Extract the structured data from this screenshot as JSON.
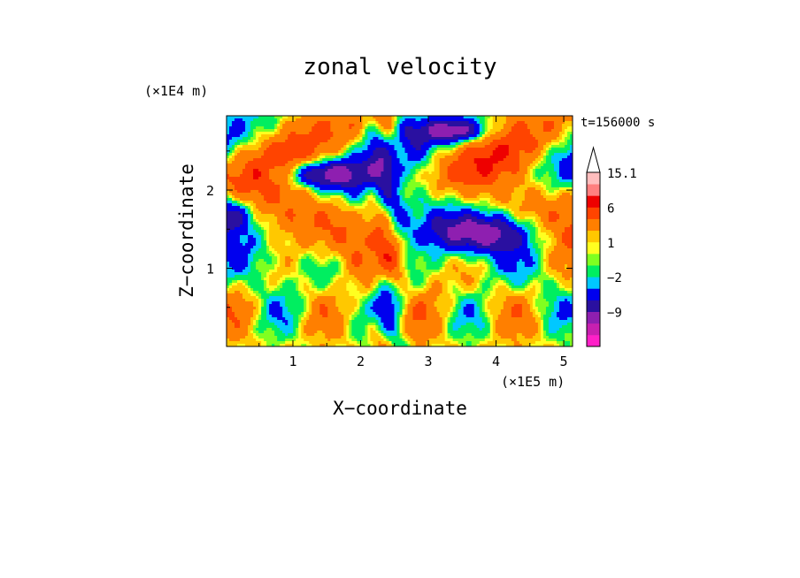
{
  "chart_data": {
    "type": "heatmap",
    "title": "zonal velocity",
    "xlabel": "X−coordinate",
    "ylabel": "Z−coordinate",
    "x_scale_note": "(×1E5 m)",
    "y_scale_note": "(×1E4 m)",
    "time_label": "t=156000 s",
    "xlim": [
      0.02,
      5.13
    ],
    "ylim": [
      0.0,
      2.95
    ],
    "x_ticks": [
      1,
      2,
      3,
      4,
      5
    ],
    "y_ticks": [
      1,
      2
    ],
    "colorbar": {
      "label_values": [
        "15.1",
        "6",
        "1",
        "−2",
        "−9"
      ],
      "levels": [
        {
          "color": "#ff20c8",
          "min": null,
          "max": -12
        },
        {
          "color": "#c820b0",
          "min": -12,
          "max": -9
        },
        {
          "color": "#8e1fb0",
          "min": -9,
          "max": -6
        },
        {
          "color": "#2a10a0",
          "min": -6,
          "max": -4
        },
        {
          "color": "#0000ee",
          "min": -4,
          "max": -2
        },
        {
          "color": "#00c8ff",
          "min": -2,
          "max": -1
        },
        {
          "color": "#00ee60",
          "min": -1,
          "max": 0
        },
        {
          "color": "#80ff20",
          "min": 0,
          "max": 0.5
        },
        {
          "color": "#ffff20",
          "min": 0.5,
          "max": 1
        },
        {
          "color": "#ffc800",
          "min": 1,
          "max": 2
        },
        {
          "color": "#ff7f00",
          "min": 2,
          "max": 4
        },
        {
          "color": "#ff4400",
          "min": 4,
          "max": 6
        },
        {
          "color": "#ee0000",
          "min": 6,
          "max": 9
        },
        {
          "color": "#ff7f7f",
          "min": 9,
          "max": 12
        },
        {
          "color": "#ffbebe",
          "min": 12,
          "max": 15.1
        }
      ]
    },
    "grid": false,
    "legend": "colorbar right"
  }
}
